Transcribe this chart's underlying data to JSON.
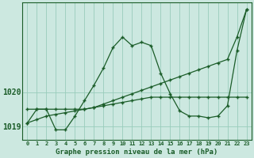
{
  "title": "Graphe pression niveau de la mer (hPa)",
  "bg_color": "#cce8e0",
  "grid_color": "#99ccbb",
  "line_color": "#1a5c28",
  "x_labels": [
    "0",
    "1",
    "2",
    "3",
    "4",
    "5",
    "6",
    "7",
    "8",
    "9",
    "10",
    "11",
    "12",
    "13",
    "14",
    "15",
    "16",
    "17",
    "18",
    "19",
    "20",
    "21",
    "22",
    "23"
  ],
  "ylim": [
    1018.6,
    1022.6
  ],
  "yticks": [
    1019,
    1020
  ],
  "series_flat": [
    1019.5,
    1019.5,
    1019.5,
    1019.5,
    1019.5,
    1019.5,
    1019.5,
    1019.55,
    1019.6,
    1019.65,
    1019.7,
    1019.75,
    1019.8,
    1019.85,
    1019.85,
    1019.85,
    1019.85,
    1019.85,
    1019.85,
    1019.85,
    1019.85,
    1019.85,
    1019.85,
    1019.85
  ],
  "series_diag": [
    1019.1,
    1019.2,
    1019.3,
    1019.35,
    1019.4,
    1019.45,
    1019.5,
    1019.55,
    1019.65,
    1019.75,
    1019.85,
    1019.95,
    1020.05,
    1020.15,
    1020.25,
    1020.35,
    1020.45,
    1020.55,
    1020.65,
    1020.75,
    1020.85,
    1020.95,
    1021.6,
    1022.4
  ],
  "series_main": [
    1019.1,
    1019.5,
    1019.5,
    1018.9,
    1018.9,
    1019.3,
    1019.75,
    1020.2,
    1020.7,
    1021.3,
    1021.6,
    1021.35,
    1021.45,
    1021.35,
    1020.55,
    1019.95,
    1019.45,
    1019.3,
    1019.3,
    1019.25,
    1019.3,
    1019.6,
    1021.2,
    1022.4
  ]
}
